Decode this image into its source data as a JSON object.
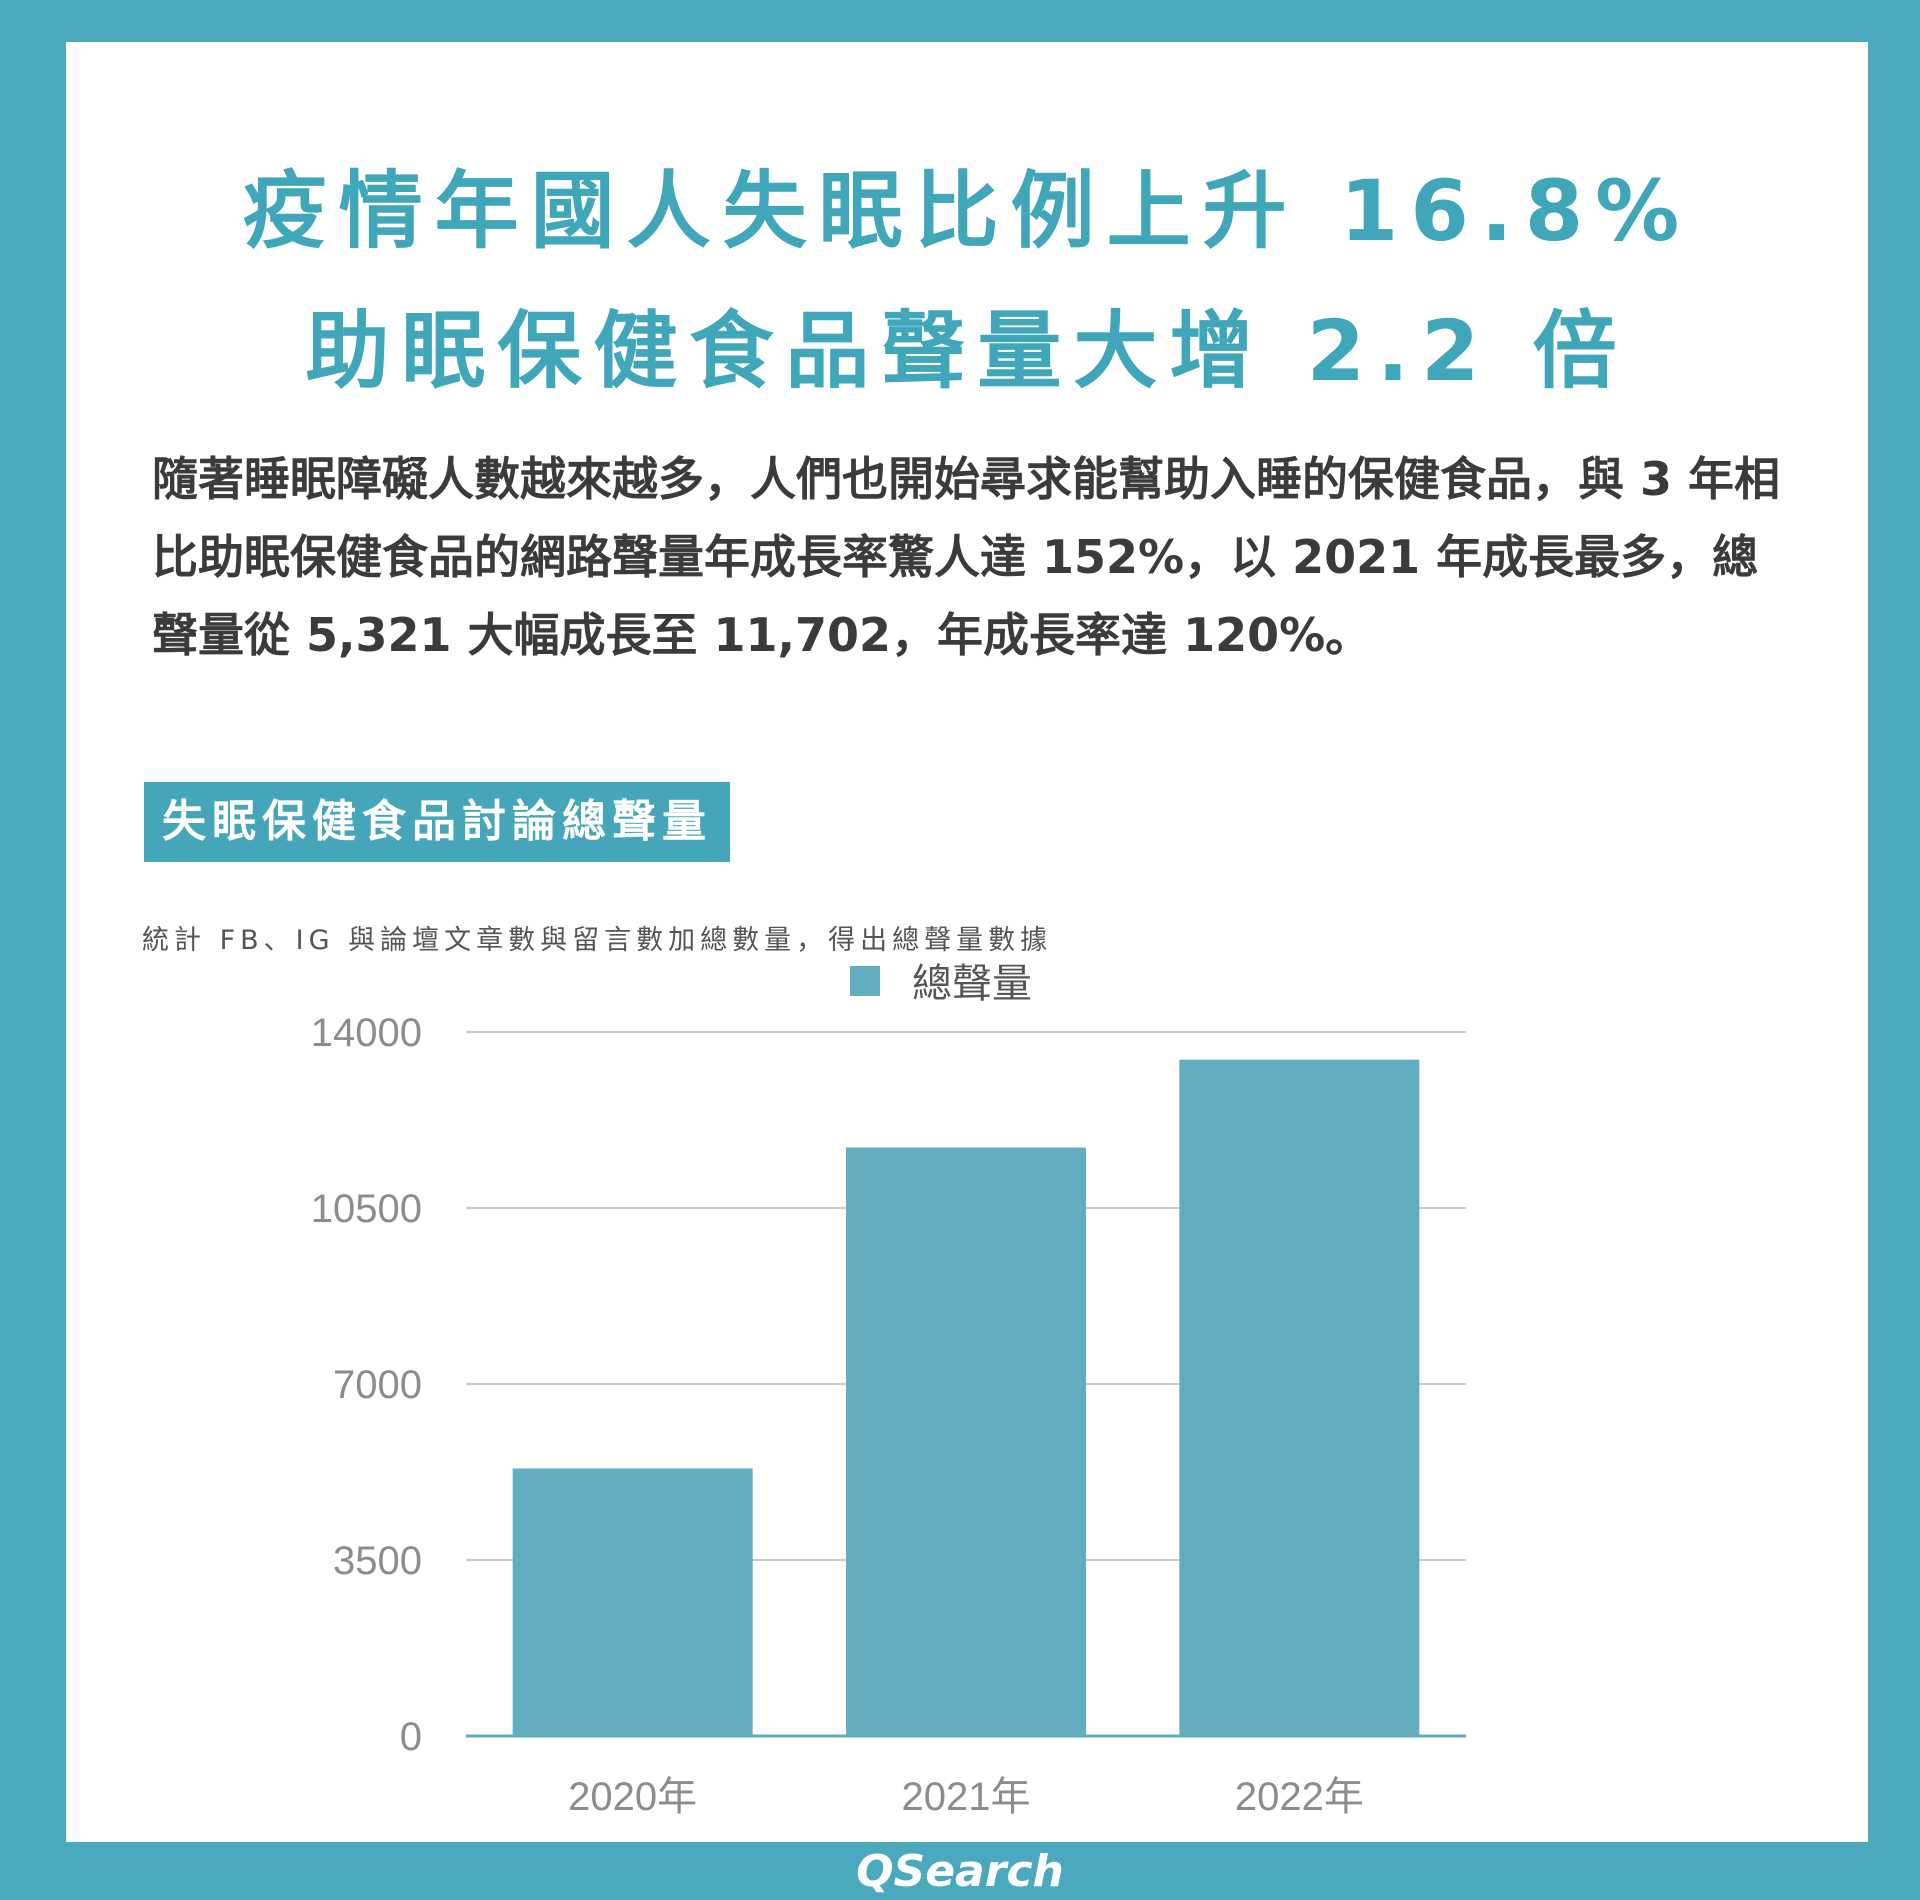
{
  "headline": {
    "line1": "疫情年國人失眠比例上升 16.8%",
    "line2": "助眠保健食品聲量大增 2.2 倍"
  },
  "body_text": "隨著睡眠障礙人數越來越多，人們也開始尋求能幫助入睡的保健食品，與 3 年相比助眠保健食品的網路聲量年成長率驚人達 152%，以 2021 年成長最多，總聲量從 5,321 大幅成長至 11,702，年成長率達 120%。",
  "chart_badge": "失眠保健食品討論總聲量",
  "chart_note": "統計 FB、IG 與論壇文章數與留言數加總數量，得出總聲量數據",
  "footer": {
    "brand": "QSearch"
  },
  "colors": {
    "accent": "#4aa9bd",
    "bar": "#62aec0",
    "grid": "#cccccc",
    "axis": "#62aec0"
  },
  "chart_data": {
    "type": "bar",
    "categories": [
      "2020年",
      "2021年",
      "2022年"
    ],
    "series": [
      {
        "name": "總聲量",
        "values": [
          5321,
          11702,
          13450
        ]
      }
    ],
    "ylim": [
      0,
      14000
    ],
    "yticks": [
      0,
      3500,
      7000,
      10500,
      14000
    ],
    "legend": "top-center",
    "grid": true
  }
}
